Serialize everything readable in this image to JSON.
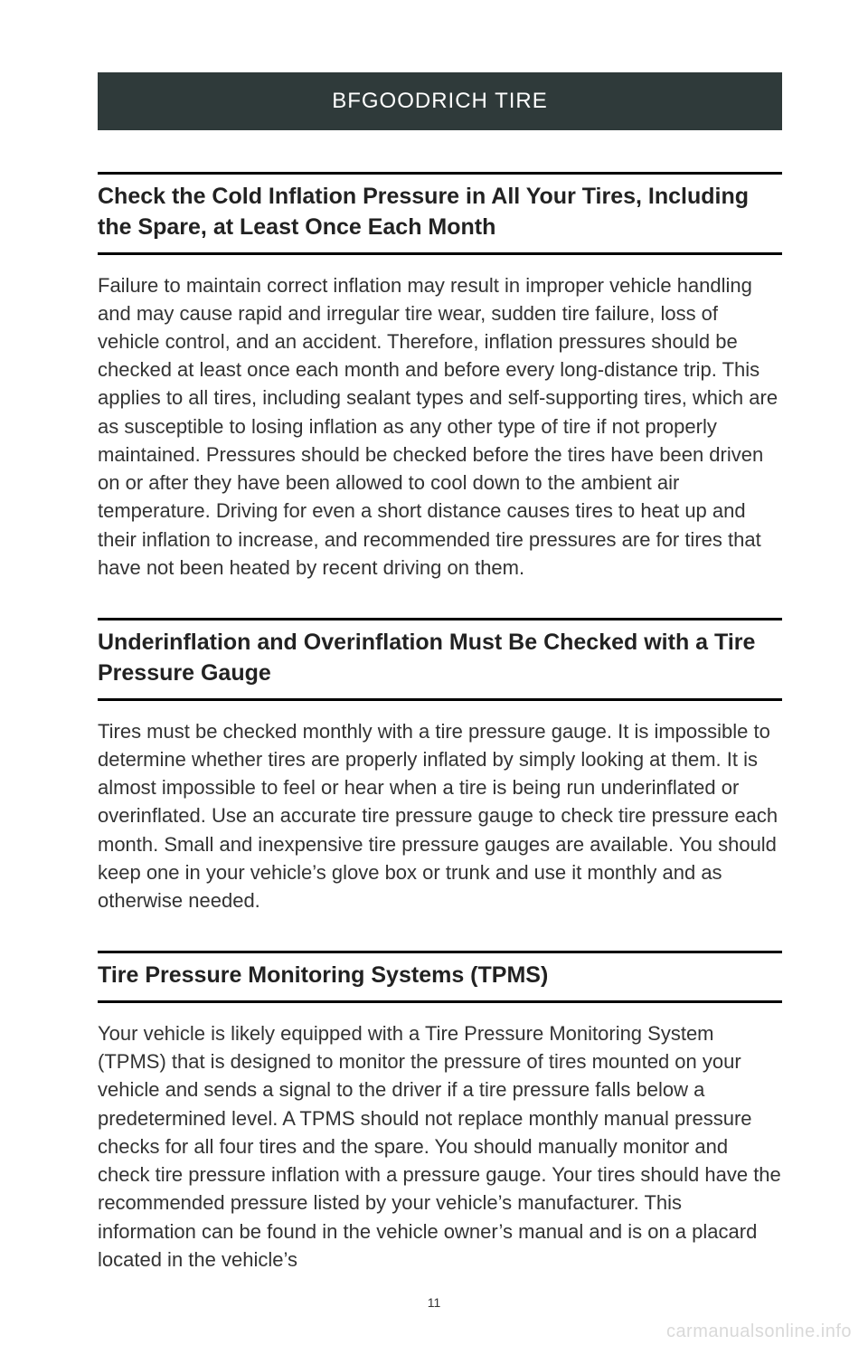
{
  "header": {
    "title": "BFGOODRICH TIRE",
    "background_color": "#2f3a3a",
    "text_color": "#ffffff",
    "fontsize": 24
  },
  "sections": [
    {
      "heading": "Check the Cold Inflation Pressure in All Your Tires, Including the Spare, at Least Once Each Month",
      "body": "Failure to maintain correct inflation may result in improper vehicle handling and may cause rapid and irregular tire wear, sudden tire failure, loss of vehicle control, and an accident. Therefore, inflation pressures should be checked at least once each month and before every long-distance trip. This applies to all tires, including sealant types and self-supporting tires, which are as susceptible to losing inflation as any other type of tire if not properly maintained. Pressures should be checked before the tires have been driven on or after they have been allowed to cool down to the ambient air temperature. Driving for even a short distance causes tires to heat up and their inflation to increase, and recommended tire pressures are for tires that have not been heated by recent driving on them."
    },
    {
      "heading": "Underinflation and Overinflation Must Be Checked with a Tire Pressure Gauge",
      "body": "Tires must be checked monthly with a tire pressure gauge. It is impossible to determine whether tires are properly inflated by simply looking at them. It is almost impossible to feel or hear when a tire is being run underinflated or overinflated. Use an accurate tire pressure gauge to check tire pressure each month. Small and inexpensive tire pressure gauges are available. You should keep one in your vehicle’s glove box or trunk and use it monthly and as otherwise needed."
    },
    {
      "heading": "Tire Pressure Monitoring Systems (TPMS)",
      "body": "Your vehicle is likely equipped with a Tire Pressure Monitoring System (TPMS) that is designed to monitor the pressure of tires mounted on your vehicle and sends a signal to the driver if a tire pressure falls below a predetermined level. A TPMS should not replace monthly manual pressure checks for all four tires and the spare. You should manually monitor and check tire pressure inflation with a pressure gauge. Your tires should have the recommended pressure listed by your vehicle’s manufacturer. This information can be found in the vehicle owner’s manual and is on a placard located in the vehicle’s"
    }
  ],
  "styles": {
    "heading_fontsize": 25,
    "heading_border_color": "#000000",
    "heading_border_width": 3,
    "body_fontsize": 22,
    "body_color": "#333333",
    "page_background": "#ffffff"
  },
  "page_number": "11",
  "watermark": "carmanualsonline.info",
  "watermark_color": "#d9d9d9"
}
